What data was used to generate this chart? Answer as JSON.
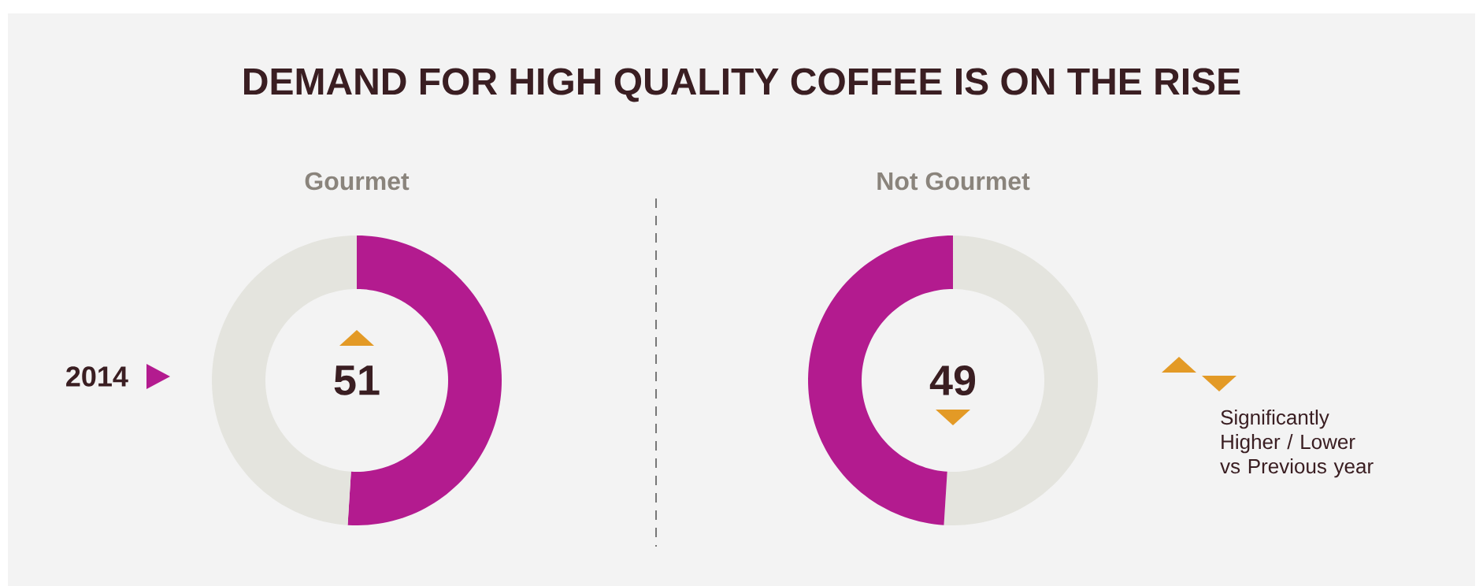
{
  "chart_data": [
    {
      "type": "other",
      "title": "DEMAND FOR HIGH QUALITY COFFEE IS ON THE RISE"
    },
    {
      "type": "donut",
      "title": "Gourmet",
      "categories": [
        null,
        null
      ],
      "values": [
        51,
        49
      ],
      "colors": [
        "#b31b8f",
        "#e4e4de"
      ],
      "value_labels": [
        "51",
        null
      ],
      "annotations": [
        "2014"
      ]
    },
    {
      "type": "donut",
      "title": "Not Gourmet",
      "categories": [
        null,
        null
      ],
      "values": [
        51,
        49
      ],
      "colors": [
        "#e4e4de",
        "#b31b8f"
      ],
      "value_labels": [
        null,
        "49"
      ],
      "annotations": [
        "Significantly Higher / Lower vs Previous year"
      ]
    }
  ]
}
